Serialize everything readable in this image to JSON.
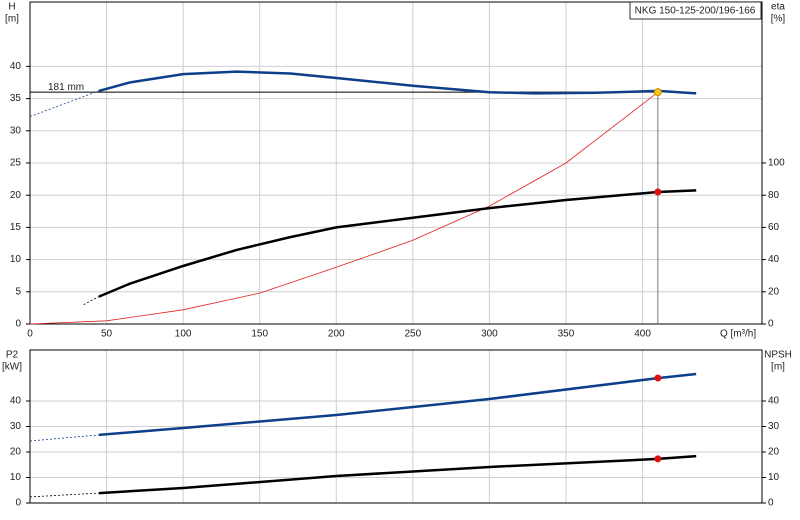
{
  "chart_data": [
    {
      "type": "line",
      "title": "NKG 150-125-200/196-166",
      "x_label": "Q [m³/h]",
      "y_label": "H",
      "y_unit": "[m]",
      "y2_label": "eta",
      "y2_unit": "[%]",
      "xlim": [
        0,
        478
      ],
      "ylim": [
        0,
        50
      ],
      "y2lim": [
        0,
        200
      ],
      "xticks": [
        0,
        50,
        100,
        150,
        200,
        250,
        300,
        350,
        400
      ],
      "yticks": [
        0,
        5,
        10,
        15,
        20,
        25,
        30,
        35,
        40
      ],
      "y2ticks": [
        0,
        20,
        40,
        60,
        80,
        100
      ],
      "grid": true,
      "annotation": {
        "text": "181 mm",
        "x": 410,
        "y": 36
      },
      "series": [
        {
          "color": "#0d3f8a",
          "style": "dashed",
          "x": [
            0,
            45
          ],
          "values": [
            32.2,
            36.2
          ]
        },
        {
          "color": "#0d3f8a",
          "style": "solid",
          "x": [
            45,
            65,
            100,
            135,
            170,
            200,
            250,
            300,
            330,
            370,
            410,
            435
          ],
          "values": [
            36.2,
            37.5,
            38.8,
            39.2,
            38.9,
            38.2,
            37.0,
            36.0,
            35.8,
            35.9,
            36.2,
            35.8
          ]
        },
        {
          "color": "#e02020",
          "style": "thin",
          "x": [
            0,
            50,
            100,
            150,
            200,
            250,
            300,
            350,
            410
          ],
          "values": [
            0,
            0.5,
            2.2,
            4.8,
            8.8,
            13,
            18.3,
            25,
            36
          ]
        },
        {
          "color": "#000000",
          "style": "dashed",
          "axis": "y2",
          "x": [
            35,
            45
          ],
          "values": [
            12,
            17
          ]
        },
        {
          "color": "#000000",
          "style": "solid",
          "axis": "y2",
          "x": [
            45,
            65,
            100,
            135,
            170,
            200,
            250,
            300,
            350,
            410,
            435
          ],
          "values": [
            17,
            25,
            36,
            46,
            54,
            60,
            66,
            72,
            77,
            82,
            83
          ]
        },
        {
          "color": "#f5c518",
          "style": "point",
          "x": [
            410
          ],
          "values": [
            36
          ]
        },
        {
          "color": "#e01010",
          "style": "point",
          "axis": "y2",
          "x": [
            410
          ],
          "values": [
            82
          ]
        }
      ]
    },
    {
      "type": "line",
      "y_label": "P2",
      "y_unit": "[kW]",
      "y2_label": "NPSH",
      "y2_unit": "[m]",
      "xlim": [
        0,
        478
      ],
      "ylim": [
        0,
        60
      ],
      "y2lim": [
        0,
        60
      ],
      "yticks": [
        0,
        10,
        20,
        30,
        40
      ],
      "y2ticks": [
        0,
        10,
        20,
        30,
        40
      ],
      "grid": true,
      "series": [
        {
          "color": "#0d3f8a",
          "style": "dashed",
          "x": [
            0,
            45
          ],
          "values": [
            24.3,
            26.7
          ]
        },
        {
          "color": "#0d3f8a",
          "style": "solid",
          "x": [
            45,
            100,
            200,
            300,
            410,
            435
          ],
          "values": [
            26.7,
            29.4,
            34.5,
            40.8,
            49,
            50.6
          ]
        },
        {
          "color": "#000000",
          "style": "dashed",
          "axis": "y2",
          "x": [
            0,
            45
          ],
          "values": [
            2.4,
            3.9
          ]
        },
        {
          "color": "#000000",
          "style": "solid",
          "axis": "y2",
          "x": [
            45,
            100,
            200,
            300,
            410,
            435
          ],
          "values": [
            3.9,
            5.9,
            10.6,
            14.1,
            17.3,
            18.4
          ]
        },
        {
          "color": "#e01010",
          "style": "point",
          "x": [
            410
          ],
          "values": [
            49
          ]
        },
        {
          "color": "#e01010",
          "style": "point",
          "axis": "y2",
          "x": [
            410
          ],
          "values": [
            17.3
          ]
        }
      ]
    }
  ]
}
